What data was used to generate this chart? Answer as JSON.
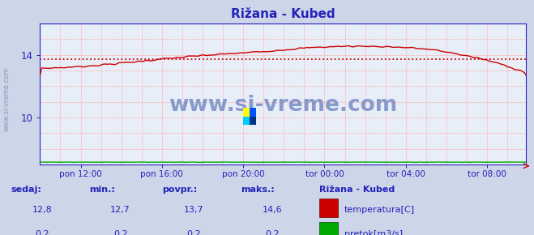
{
  "title": "Rižana - Kubed",
  "title_color": "#2222bb",
  "bg_color": "#cdd5e8",
  "plot_bg_color": "#e8eef8",
  "grid_color": "#ffaaaa",
  "axis_color": "#2222bb",
  "tick_color": "#2222bb",
  "xticklabels": [
    "pon 12:00",
    "pon 16:00",
    "pon 20:00",
    "tor 00:00",
    "tor 04:00",
    "tor 08:00"
  ],
  "xtick_fracs": [
    0.0833,
    0.25,
    0.4167,
    0.5833,
    0.75,
    0.9167
  ],
  "yticks": [
    10,
    14
  ],
  "ylim": [
    7.0,
    16.0
  ],
  "xlim": [
    0,
    288
  ],
  "temp_color": "#cc0000",
  "pretok_color": "#00aa00",
  "avg_line_color": "#cc0000",
  "avg_value": 13.7,
  "watermark": "www.si-vreme.com",
  "watermark_color": "#8899cc",
  "legend_title": "Rižana - Kubed",
  "legend_color": "#2222bb",
  "stats_labels": [
    "sedaj:",
    "min.:",
    "povpr.:",
    "maks.:"
  ],
  "stats_temp": [
    "12,8",
    "12,7",
    "13,7",
    "14,6"
  ],
  "stats_pretok": [
    "0,2",
    "0,2",
    "0,2",
    "0,2"
  ],
  "series_labels": [
    "temperatura[C]",
    "pretok[m3/s]"
  ],
  "n_points": 289
}
